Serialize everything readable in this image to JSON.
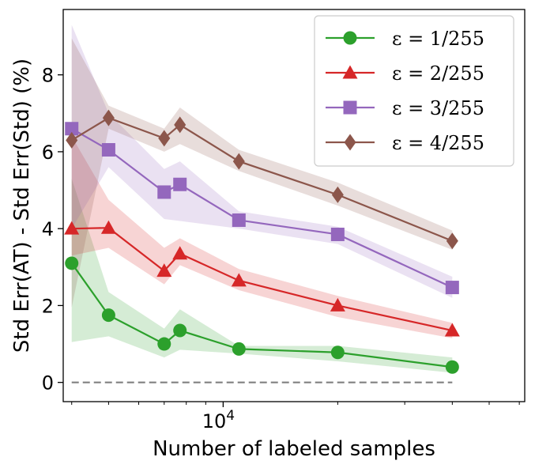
{
  "chart_data": {
    "type": "line",
    "xlabel": "Number of labeled samples",
    "ylabel": "Std Err(AT) - Std Err(Std) (%)",
    "x_scale": "log",
    "xlim": [
      3800,
      62000
    ],
    "ylim": [
      -0.5,
      9.7
    ],
    "yticks": [
      0,
      2,
      4,
      6,
      8
    ],
    "xtick_major": [
      {
        "value": 10000,
        "base": "10",
        "exp": "4"
      }
    ],
    "xtick_minor": [
      4000,
      5000,
      6000,
      7000,
      8000,
      9000,
      20000,
      30000,
      40000,
      50000,
      60000
    ],
    "grid": false,
    "legend_position": "top-right",
    "baseline": {
      "y": 0,
      "style": "dashed",
      "color": "#808080"
    },
    "x": [
      4000,
      5000,
      7000,
      7700,
      11000,
      20000,
      40000
    ],
    "series": [
      {
        "name": "ε = 1/255",
        "marker": "circle",
        "color": "#2ca02c",
        "values": [
          3.1,
          1.75,
          1.0,
          1.35,
          0.87,
          0.78,
          0.4
        ],
        "lower": [
          1.05,
          1.2,
          0.65,
          0.85,
          0.75,
          0.55,
          0.25
        ],
        "upper": [
          5.3,
          2.35,
          1.4,
          1.9,
          0.95,
          0.95,
          0.65
        ]
      },
      {
        "name": "ε = 2/255",
        "marker": "triangle",
        "color": "#d62728",
        "values": [
          4.0,
          4.02,
          2.9,
          3.35,
          2.65,
          2.0,
          1.35
        ],
        "lower": [
          3.3,
          3.5,
          2.55,
          3.05,
          2.4,
          1.7,
          1.15
        ],
        "upper": [
          6.4,
          4.75,
          3.5,
          3.75,
          2.95,
          2.25,
          1.55
        ]
      },
      {
        "name": "ε = 3/255",
        "marker": "square",
        "color": "#9467bd",
        "values": [
          6.6,
          6.05,
          4.95,
          5.15,
          4.22,
          3.85,
          2.47
        ],
        "lower": [
          4.0,
          5.6,
          4.25,
          4.2,
          4.0,
          3.6,
          2.2
        ],
        "upper": [
          9.3,
          7.0,
          5.55,
          5.75,
          4.45,
          4.05,
          2.75
        ]
      },
      {
        "name": "ε = 4/255",
        "marker": "diamond",
        "color": "#8c564b",
        "values": [
          6.3,
          6.88,
          6.35,
          6.7,
          5.75,
          4.88,
          3.68
        ],
        "lower": [
          1.95,
          6.6,
          6.0,
          6.2,
          5.5,
          4.6,
          3.45
        ],
        "upper": [
          8.95,
          7.2,
          6.6,
          7.15,
          6.05,
          5.2,
          3.95
        ]
      }
    ]
  }
}
